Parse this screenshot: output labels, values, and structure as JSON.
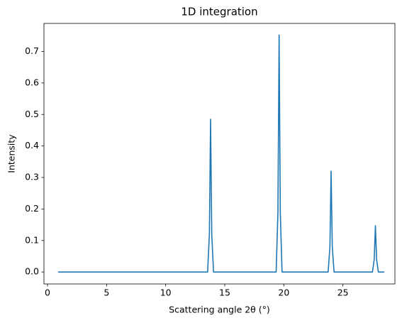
{
  "chart_data": {
    "type": "line",
    "title": "1D integration",
    "x_label": "Scattering angle 2θ (°)",
    "y_label": "Intensity",
    "x": [
      0.9,
      13.55,
      13.7,
      13.8,
      13.9,
      14.05,
      19.35,
      19.5,
      19.6,
      19.7,
      19.85,
      23.75,
      23.9,
      24.0,
      24.1,
      24.25,
      27.5,
      27.65,
      27.75,
      27.85,
      28.0,
      28.5
    ],
    "values": [
      0,
      0,
      0.12,
      0.485,
      0.12,
      0,
      0,
      0.19,
      0.752,
      0.19,
      0,
      0,
      0.08,
      0.32,
      0.08,
      0,
      0,
      0.04,
      0.147,
      0.04,
      0,
      0
    ],
    "color": "#1f77b4",
    "xlim": [
      -0.3,
      29.4
    ],
    "ylim": [
      -0.038,
      0.789
    ],
    "xticks": [
      0,
      5,
      10,
      15,
      20,
      25
    ],
    "yticks": [
      {
        "value": 0,
        "label": "0.0"
      },
      0.1,
      0.2,
      0.3,
      0.4,
      0.5,
      0.6,
      0.7
    ],
    "grid": false
  }
}
